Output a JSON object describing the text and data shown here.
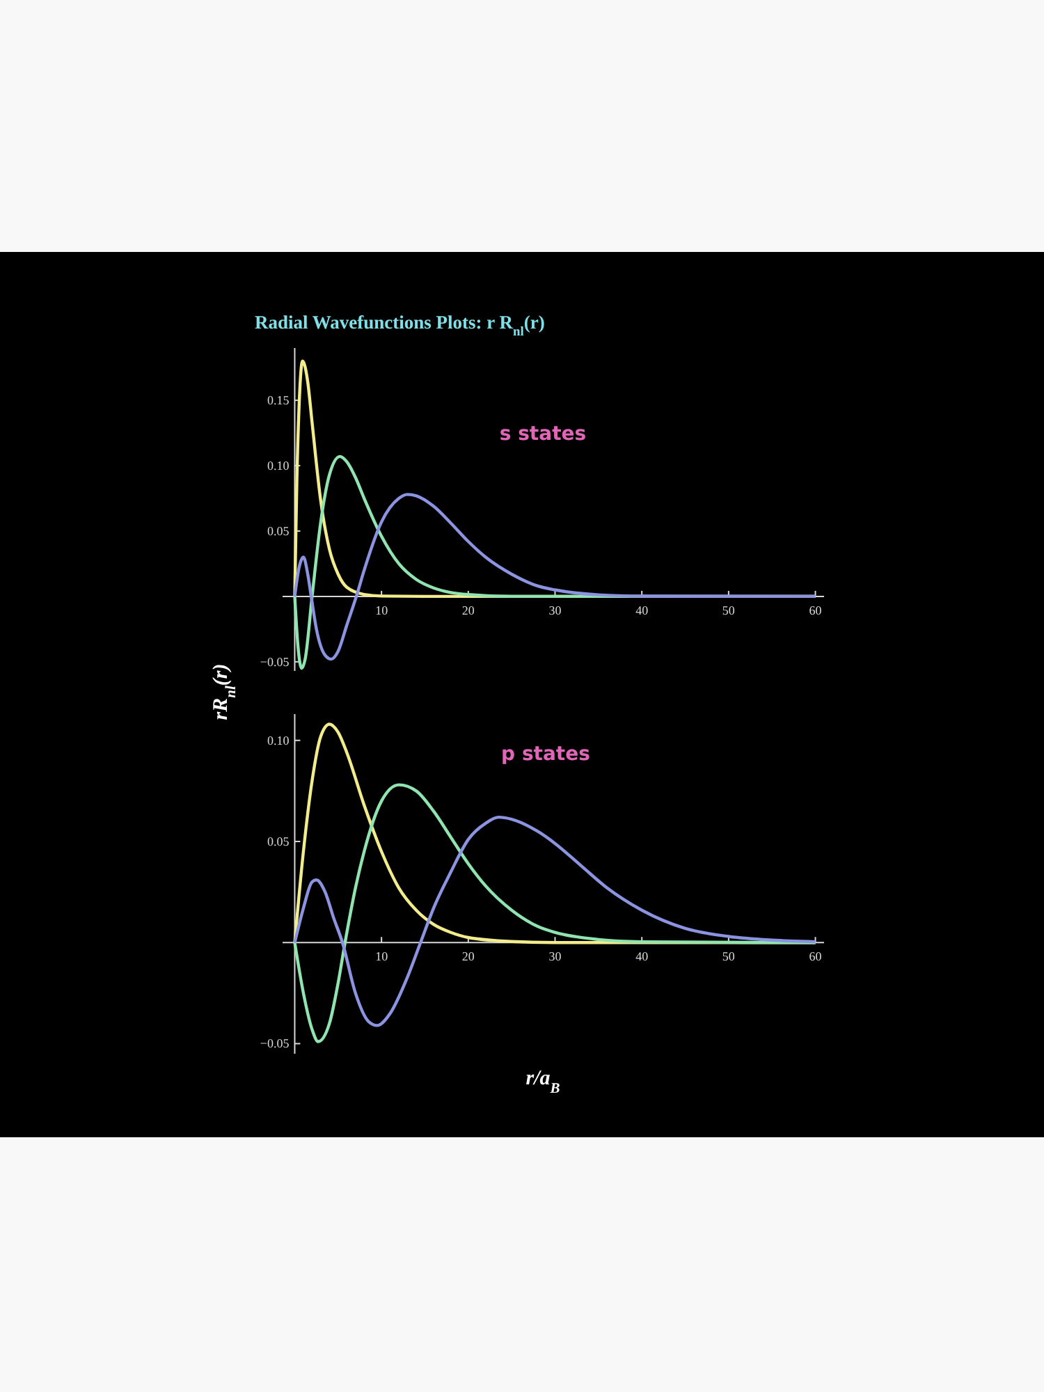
{
  "chart_data": [
    {
      "type": "line",
      "title": "Radial Wavefunctions Plots:  r R$_{nl}$(r)",
      "ylabel": "rR$_{nl}$(r)",
      "annotations": [
        "s states"
      ],
      "xlim": [
        -1.4,
        61
      ],
      "ylim": [
        -0.057,
        0.19
      ],
      "xticks": [
        10,
        20,
        30,
        40,
        50,
        60
      ],
      "yticks": [
        {
          "value": -0.05,
          "label": "−0.05"
        },
        {
          "value": 0.05,
          "label": "0.05"
        },
        {
          "value": 0.1,
          "label": "0.10"
        },
        {
          "value": 0.15,
          "label": "0.15"
        }
      ],
      "series": [
        {
          "color": "#f2ec8c",
          "x": [
            0,
            0.25,
            0.5,
            0.9,
            1.5,
            2,
            3,
            4,
            5,
            6,
            8,
            10,
            15,
            60
          ],
          "values": [
            0,
            0.09,
            0.145,
            0.18,
            0.164,
            0.133,
            0.073,
            0.036,
            0.017,
            0.007,
            0.0015,
            0.0003,
            0,
            0
          ]
        },
        {
          "color": "#8fe4b0",
          "x": [
            0,
            0.4,
            0.8,
            1.2,
            2,
            3,
            4,
            5.2,
            6,
            7,
            8,
            10,
            12,
            14,
            16,
            18,
            20,
            25,
            60
          ],
          "values": [
            0,
            -0.04,
            -0.055,
            -0.048,
            0,
            0.057,
            0.093,
            0.107,
            0.103,
            0.091,
            0.075,
            0.046,
            0.025,
            0.013,
            0.0065,
            0.003,
            0.0014,
            0,
            0
          ]
        },
        {
          "color": "#8c93e0",
          "x": [
            0,
            0.5,
            1,
            1.5,
            1.9,
            2.5,
            3.5,
            4.2,
            5,
            6,
            7.1,
            8,
            10,
            12,
            13,
            14,
            16,
            18,
            20,
            22,
            25,
            28,
            30,
            35,
            40,
            60
          ],
          "values": [
            0,
            0.022,
            0.03,
            0.017,
            0,
            -0.025,
            -0.045,
            -0.048,
            -0.042,
            -0.022,
            0,
            0.02,
            0.057,
            0.075,
            0.078,
            0.077,
            0.069,
            0.056,
            0.042,
            0.03,
            0.017,
            0.008,
            0.005,
            0.0012,
            0.0002,
            0
          ]
        }
      ]
    },
    {
      "type": "line",
      "xlabel": "r/a$_{B}$",
      "annotations": [
        "p states"
      ],
      "xlim": [
        -1.4,
        61
      ],
      "ylim": [
        -0.055,
        0.113
      ],
      "xticks": [
        10,
        20,
        30,
        40,
        50,
        60
      ],
      "yticks": [
        {
          "value": -0.05,
          "label": "−0.05"
        },
        {
          "value": 0.05,
          "label": "0.05"
        },
        {
          "value": 0.1,
          "label": "0.10"
        }
      ],
      "series": [
        {
          "color": "#f2ec8c",
          "x": [
            0,
            1,
            2,
            3,
            4,
            5,
            6,
            8,
            10,
            12,
            14,
            16,
            18,
            20,
            25,
            30,
            60
          ],
          "values": [
            0,
            0.045,
            0.08,
            0.102,
            0.108,
            0.104,
            0.094,
            0.068,
            0.045,
            0.027,
            0.016,
            0.009,
            0.005,
            0.0025,
            0.0005,
            0,
            0
          ]
        },
        {
          "color": "#8fe4b0",
          "x": [
            0,
            1,
            2,
            2.7,
            4,
            5,
            5.8,
            7,
            8,
            10,
            12,
            14,
            16,
            18,
            20,
            22,
            25,
            28,
            30,
            35,
            40,
            60
          ],
          "values": [
            0,
            -0.025,
            -0.043,
            -0.049,
            -0.04,
            -0.02,
            0,
            0.027,
            0.045,
            0.07,
            0.078,
            0.075,
            0.065,
            0.052,
            0.039,
            0.028,
            0.016,
            0.008,
            0.005,
            0.0015,
            0.0004,
            0
          ]
        },
        {
          "color": "#8c93e0",
          "x": [
            0,
            1,
            2,
            2.5,
            3.5,
            4.5,
            5.5,
            7,
            8.5,
            9.5,
            11,
            13,
            14.5,
            16,
            18,
            20,
            22,
            23.5,
            25,
            28,
            30,
            33,
            36,
            40,
            45,
            50,
            55,
            60
          ],
          "values": [
            0,
            0.017,
            0.03,
            0.031,
            0.025,
            0.012,
            0,
            -0.025,
            -0.039,
            -0.041,
            -0.035,
            -0.017,
            0,
            0.017,
            0.035,
            0.051,
            0.059,
            0.062,
            0.061,
            0.055,
            0.049,
            0.038,
            0.027,
            0.016,
            0.007,
            0.003,
            0.0012,
            0.0004
          ]
        }
      ]
    }
  ]
}
